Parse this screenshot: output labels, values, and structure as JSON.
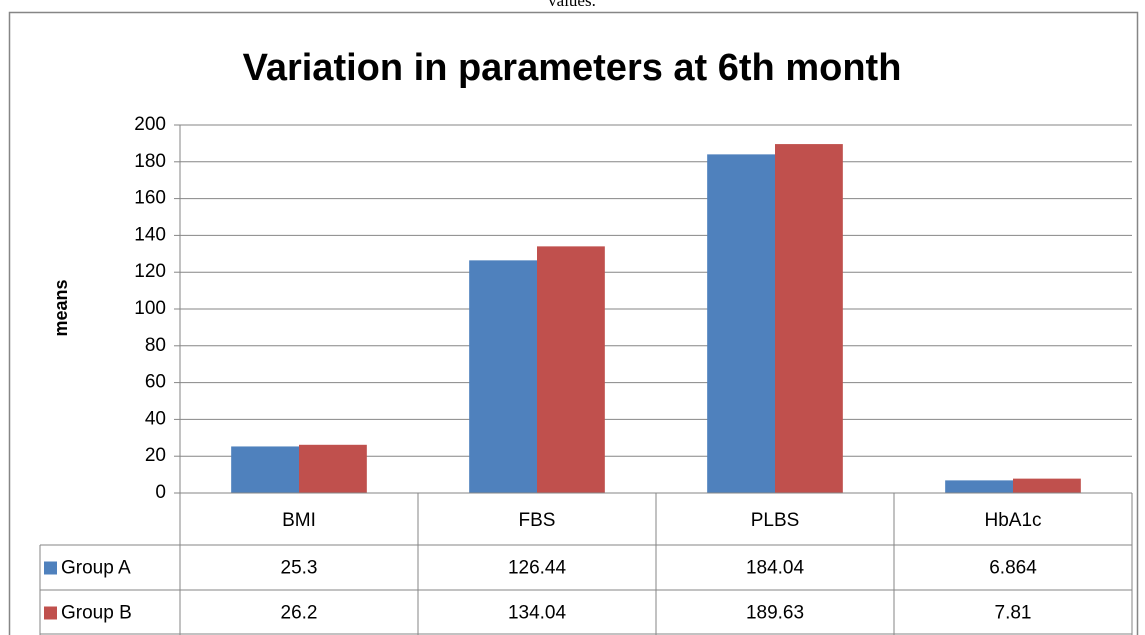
{
  "caption": "values.",
  "chart_data": {
    "type": "bar",
    "title": "Variation in parameters at 6th month",
    "ylabel": "means",
    "categories": [
      "BMI",
      "FBS",
      "PLBS",
      "HbA1c"
    ],
    "series": [
      {
        "name": "Group A",
        "color": "#4f81bd",
        "values": [
          25.3,
          126.44,
          184.04,
          6.864
        ]
      },
      {
        "name": "Group B",
        "color": "#c0504d",
        "values": [
          26.2,
          134.04,
          189.63,
          7.81
        ]
      }
    ],
    "ylim": [
      0,
      200
    ],
    "yticks": [
      0,
      20,
      40,
      60,
      80,
      100,
      120,
      140,
      160,
      180,
      200
    ],
    "grid": true
  }
}
